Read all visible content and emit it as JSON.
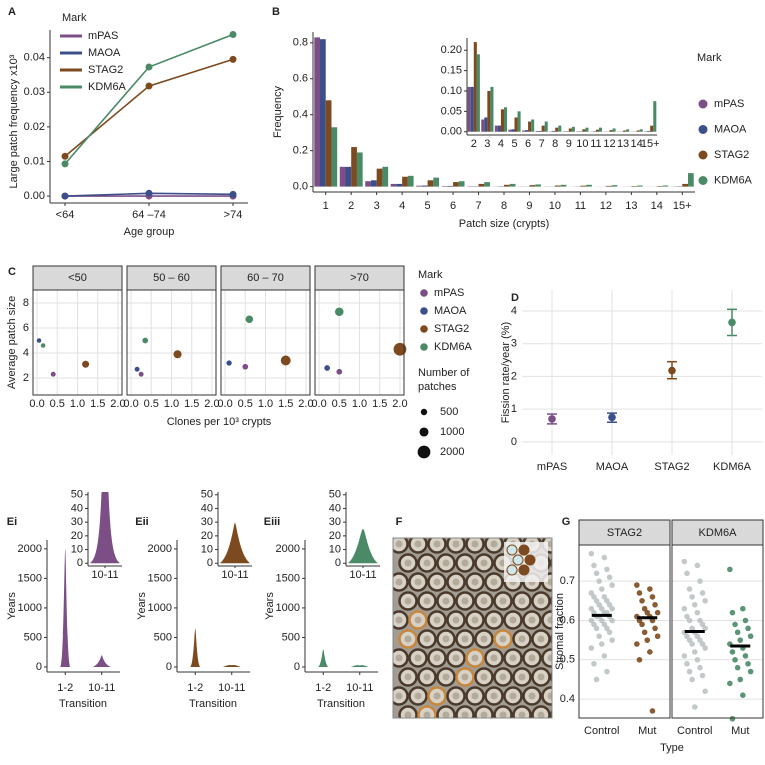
{
  "chart_data": [
    {
      "label": "A",
      "type": "line",
      "xlabel": "Age group",
      "ylabel": "Large patch frequency x10³",
      "legend_title": "Mark",
      "legend": "top-left",
      "categories": [
        "<64",
        "64 –74",
        ">74"
      ],
      "series": [
        {
          "name": "mPAS",
          "color": "#7b4f86",
          "values": [
            0,
            0,
            0
          ]
        },
        {
          "name": "MAOA",
          "color": "#3b4f8a",
          "values": [
            0,
            0.0008,
            0.0005
          ]
        },
        {
          "name": "STAG2",
          "color": "#7c4a1e",
          "values": [
            0.0115,
            0.0318,
            0.0395
          ]
        },
        {
          "name": "KDM6A",
          "color": "#4a8a66",
          "values": [
            0.0093,
            0.0373,
            0.0467
          ]
        }
      ],
      "ylim": [
        -0.002,
        0.048
      ],
      "yticks": [
        {
          "value": 0,
          "label": "0.00"
        },
        0.01,
        0.02,
        0.03,
        0.04
      ],
      "grid": false
    },
    {
      "label": "B",
      "type": "bar",
      "xlabel": "Patch size (crypts)",
      "ylabel": "Frequency",
      "legend_title": "Mark",
      "legend": "right",
      "categories": [
        "1",
        "2",
        "3",
        "4",
        "5",
        "6",
        "7",
        "8",
        "9",
        "10",
        "11",
        "12",
        "13",
        "14",
        "15+"
      ],
      "series": [
        {
          "name": "mPAS",
          "color": "#7b4f86",
          "values": [
            0.83,
            0.11,
            0.03,
            0.015,
            0.005,
            0.003,
            0.002,
            0.001,
            0.001,
            0.001,
            0.0005,
            0.0005,
            0.0005,
            0.0005,
            0.001
          ]
        },
        {
          "name": "MAOA",
          "color": "#3b4f8a",
          "values": [
            0.82,
            0.11,
            0.035,
            0.015,
            0.006,
            0.004,
            0.002,
            0.002,
            0.001,
            0.001,
            0.001,
            0.0005,
            0.0005,
            0.0005,
            0.002
          ]
        },
        {
          "name": "STAG2",
          "color": "#7c4a1e",
          "values": [
            0.48,
            0.22,
            0.1,
            0.055,
            0.035,
            0.025,
            0.015,
            0.01,
            0.008,
            0.006,
            0.005,
            0.004,
            0.003,
            0.003,
            0.015
          ]
        },
        {
          "name": "KDM6A",
          "color": "#4a8a66",
          "values": [
            0.33,
            0.19,
            0.11,
            0.06,
            0.05,
            0.03,
            0.025,
            0.015,
            0.012,
            0.01,
            0.01,
            0.008,
            0.006,
            0.006,
            0.075
          ]
        }
      ],
      "ylim": [
        -0.03,
        0.86
      ],
      "yticks": [
        {
          "value": 0,
          "label": "0.0"
        },
        0.2,
        0.4,
        0.6,
        0.8
      ],
      "inset_ylim": [
        -0.008,
        0.23
      ],
      "inset_yticks": [
        {
          "value": 0,
          "label": "0.00"
        },
        0.05,
        {
          "value": 0.1,
          "label": "0.10"
        },
        0.15,
        {
          "value": 0.2,
          "label": "0.20"
        }
      ],
      "grid": false
    },
    {
      "label": "C",
      "type": "scatter",
      "xlabel": "Clones per 10³ crypts",
      "ylabel": "Average patch size",
      "legend_title": "Mark",
      "size_legend_title": "Number of patches",
      "size_legend": [
        500,
        1000,
        2000
      ],
      "facets": [
        "<50",
        "50 – 60",
        "60 – 70",
        ">70"
      ],
      "series": [
        {
          "name": "mPAS",
          "color": "#7b4f86",
          "x": [
            0.4,
            0.25,
            0.5,
            0.5
          ],
          "y": [
            2.3,
            2.3,
            2.9,
            2.5
          ],
          "size": [
            300,
            300,
            400,
            400
          ]
        },
        {
          "name": "MAOA",
          "color": "#3b4f8a",
          "x": [
            0.05,
            0.15,
            0.1,
            0.2
          ],
          "y": [
            5.0,
            2.7,
            3.2,
            2.8
          ],
          "size": [
            250,
            300,
            350,
            400
          ]
        },
        {
          "name": "STAG2",
          "color": "#7c4a1e",
          "x": [
            1.2,
            1.15,
            1.5,
            2.0
          ],
          "y": [
            3.1,
            3.9,
            3.4,
            4.3
          ],
          "size": [
            600,
            800,
            1200,
            2000
          ]
        },
        {
          "name": "KDM6A",
          "color": "#4a8a66",
          "x": [
            0.15,
            0.35,
            0.6,
            0.5
          ],
          "y": [
            4.6,
            5.0,
            6.7,
            7.3
          ],
          "size": [
            250,
            400,
            700,
            900
          ]
        }
      ],
      "xlim": [
        -0.1,
        2.1
      ],
      "xticks": [
        {
          "value": 0,
          "label": "0.0"
        },
        0.5,
        {
          "value": 1,
          "label": "1.0"
        },
        1.5,
        {
          "value": 2,
          "label": "2.0"
        }
      ],
      "ylim": [
        0.64,
        9.04
      ],
      "yticks": [
        2,
        4,
        6,
        8
      ],
      "grid": true
    },
    {
      "label": "D",
      "type": "errorbar",
      "ylabel": "Fission rate/year (%)",
      "categories": [
        "mPAS",
        "MAOA",
        "STAG2",
        "KDM6A"
      ],
      "colors": [
        "#7b4f86",
        "#3b4f8a",
        "#7c4a1e",
        "#4a8a66"
      ],
      "values": [
        0.7,
        0.75,
        2.18,
        3.65
      ],
      "lower": [
        0.55,
        0.6,
        1.93,
        3.25
      ],
      "upper": [
        0.85,
        0.88,
        2.45,
        4.05
      ],
      "ylim": [
        -0.4,
        4.64
      ],
      "yticks": [
        0,
        1,
        2,
        3,
        4
      ],
      "grid": true
    },
    {
      "label": "Ei",
      "type": "violin",
      "xlabel": "Transition",
      "ylabel": "Years",
      "color": "#7b4f86",
      "categories": [
        "1-2",
        "10-11"
      ],
      "values": [
        2000,
        200
      ],
      "ylim": [
        -85,
        2150
      ],
      "yticks": [
        0,
        500,
        1000,
        1500,
        2000
      ],
      "inset_ylim": [
        -2,
        52
      ],
      "inset_yticks": [
        0,
        10,
        20,
        30,
        40,
        50
      ]
    },
    {
      "label": "Eii",
      "type": "violin",
      "xlabel": "Transition",
      "ylabel": "Years",
      "color": "#7c4a1e",
      "categories": [
        "1-2",
        "10-11"
      ],
      "values": [
        650,
        30
      ],
      "ylim": [
        -85,
        2150
      ],
      "yticks": [
        0,
        500,
        1000,
        1500,
        2000
      ],
      "inset_ylim": [
        -2,
        52
      ],
      "inset_yticks": [
        0,
        10,
        20,
        30,
        40,
        50
      ]
    },
    {
      "label": "Eiii",
      "type": "violin",
      "xlabel": "Transition",
      "ylabel": "Years",
      "color": "#4a8a66",
      "categories": [
        "1-2",
        "10-11"
      ],
      "values": [
        300,
        25
      ],
      "ylim": [
        -85,
        2150
      ],
      "yticks": [
        0,
        500,
        1000,
        1500,
        2000
      ],
      "inset_ylim": [
        -2,
        52
      ],
      "inset_yticks": [
        0,
        10,
        20,
        30,
        40,
        50
      ]
    },
    {
      "label": "F",
      "type": "image"
    },
    {
      "label": "G",
      "type": "strip",
      "xlabel": "Type",
      "ylabel": "Stromal fraction",
      "facets": [
        "STAG2",
        "KDM6A"
      ],
      "categories": [
        "Control",
        "Mut"
      ],
      "colors": [
        [
          "#bcc3c4",
          "#7c4a1e"
        ],
        [
          "#bcc3c4",
          "#4a8a66"
        ]
      ],
      "groups": [
        [
          [
            0.77,
            0.76,
            0.74,
            0.73,
            0.72,
            0.71,
            0.7,
            0.69,
            0.68,
            0.67,
            0.66,
            0.66,
            0.65,
            0.65,
            0.64,
            0.64,
            0.63,
            0.63,
            0.63,
            0.62,
            0.62,
            0.62,
            0.61,
            0.61,
            0.61,
            0.6,
            0.6,
            0.6,
            0.59,
            0.59,
            0.58,
            0.58,
            0.57,
            0.56,
            0.55,
            0.54,
            0.53,
            0.51,
            0.49,
            0.47,
            0.45
          ],
          [
            0.69,
            0.68,
            0.67,
            0.66,
            0.65,
            0.64,
            0.63,
            0.62,
            0.62,
            0.61,
            0.61,
            0.6,
            0.6,
            0.59,
            0.58,
            0.57,
            0.56,
            0.55,
            0.54,
            0.52,
            0.5,
            0.37
          ]
        ],
        [
          [
            0.75,
            0.74,
            0.72,
            0.7,
            0.68,
            0.67,
            0.66,
            0.65,
            0.64,
            0.63,
            0.62,
            0.61,
            0.6,
            0.6,
            0.59,
            0.58,
            0.58,
            0.57,
            0.57,
            0.56,
            0.56,
            0.55,
            0.55,
            0.54,
            0.54,
            0.53,
            0.52,
            0.51,
            0.5,
            0.49,
            0.48,
            0.47,
            0.46,
            0.45,
            0.42,
            0.38
          ],
          [
            0.73,
            0.63,
            0.62,
            0.6,
            0.59,
            0.58,
            0.57,
            0.56,
            0.55,
            0.54,
            0.53,
            0.52,
            0.51,
            0.5,
            0.49,
            0.48,
            0.47,
            0.45,
            0.44,
            0.41,
            0.35
          ]
        ]
      ],
      "means": [
        [
          0.613,
          0.607
        ],
        [
          0.572,
          0.535
        ]
      ],
      "ylim": [
        0.352,
        0.792
      ],
      "yticks": [
        0.4,
        0.5,
        0.6,
        0.7
      ],
      "grid": true
    }
  ]
}
